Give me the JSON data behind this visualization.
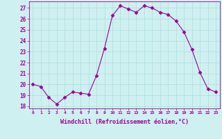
{
  "x": [
    0,
    1,
    2,
    3,
    4,
    5,
    6,
    7,
    8,
    9,
    10,
    11,
    12,
    13,
    14,
    15,
    16,
    17,
    18,
    19,
    20,
    21,
    22,
    23
  ],
  "y": [
    20.0,
    19.8,
    18.8,
    18.2,
    18.8,
    19.3,
    19.2,
    19.1,
    20.8,
    23.3,
    26.3,
    27.2,
    26.9,
    26.6,
    27.2,
    27.0,
    26.6,
    26.4,
    25.8,
    24.8,
    23.2,
    21.1,
    19.6,
    19.3
  ],
  "line_color": "#990099",
  "marker": "D",
  "marker_size": 2.5,
  "bg_color": "#cff0f0",
  "grid_color": "#aadddd",
  "xlabel": "Windchill (Refroidissement éolien,°C)",
  "ylabel": "",
  "ylim": [
    17.8,
    27.6
  ],
  "xlim": [
    -0.5,
    23.5
  ],
  "yticks": [
    18,
    19,
    20,
    21,
    22,
    23,
    24,
    25,
    26,
    27
  ],
  "xticks": [
    0,
    1,
    2,
    3,
    4,
    5,
    6,
    7,
    8,
    9,
    10,
    11,
    12,
    13,
    14,
    15,
    16,
    17,
    18,
    19,
    20,
    21,
    22,
    23
  ],
  "tick_color": "#990099",
  "axis_color": "#990099",
  "xlabel_color": "#990099"
}
